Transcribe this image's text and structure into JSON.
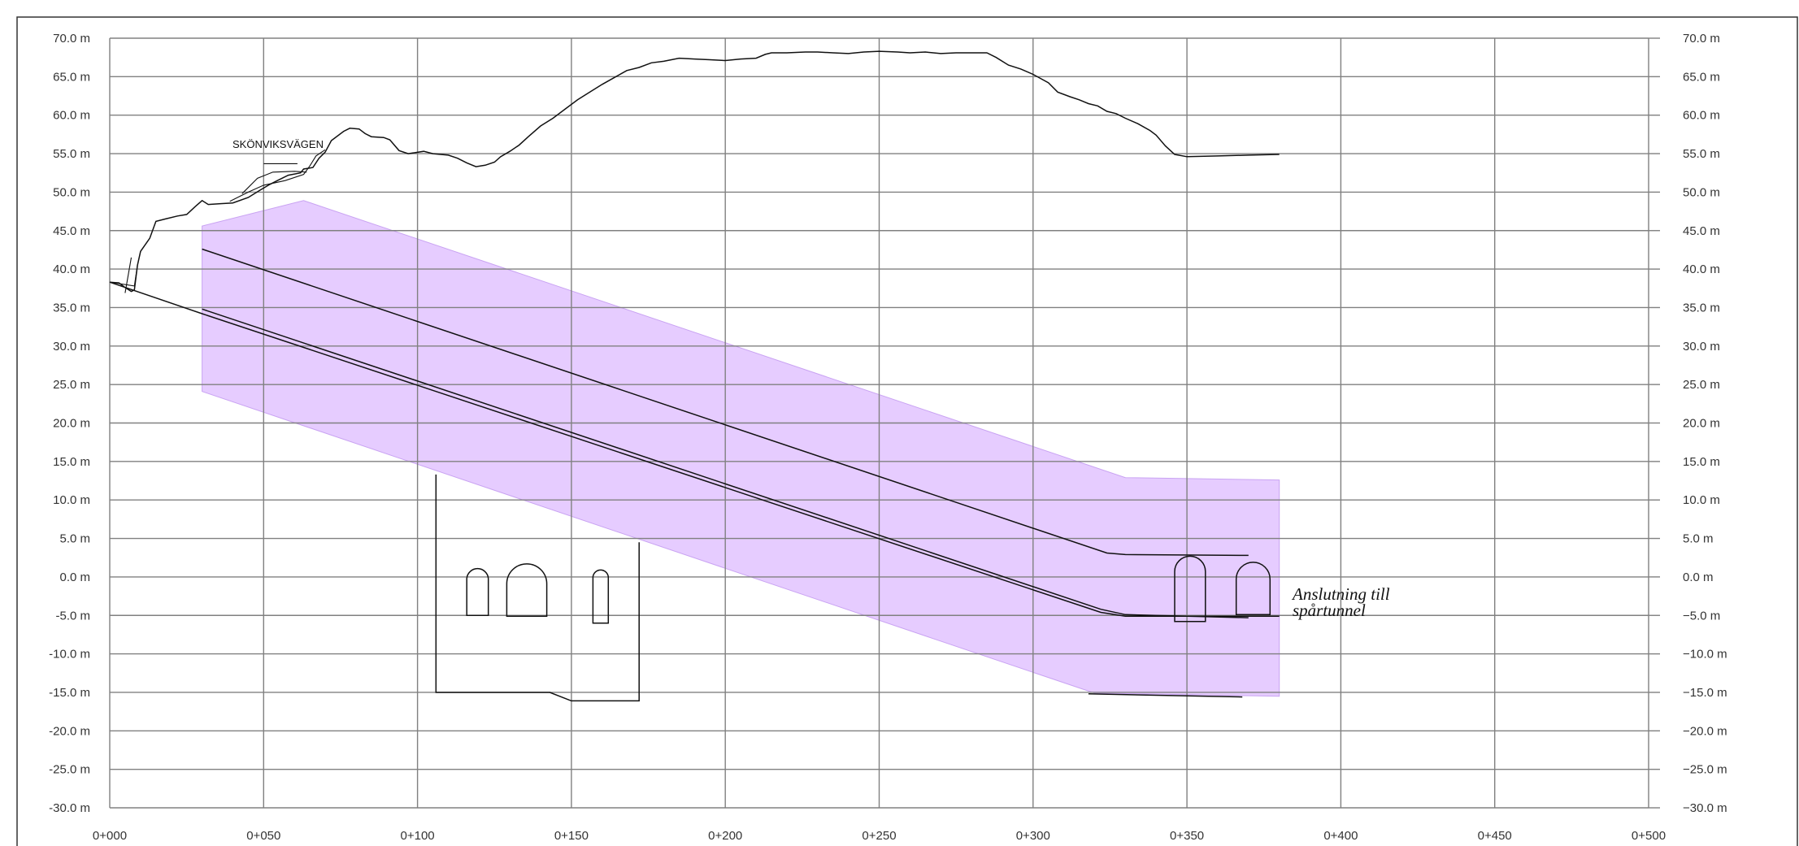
{
  "chart_data": {
    "type": "diagram",
    "x_ticks": [
      "0+000",
      "0+050",
      "0+100",
      "0+150",
      "0+200",
      "0+250",
      "0+300",
      "0+350",
      "0+400",
      "0+450",
      "0+500"
    ],
    "y_ticks_left": [
      "70.0 m",
      "65.0 m",
      "60.0 m",
      "55.0 m",
      "50.0 m",
      "45.0 m",
      "40.0 m",
      "35.0 m",
      "30.0 m",
      "25.0 m",
      "20.0 m",
      "15.0 m",
      "10.0 m",
      "5.0 m",
      "0.0 m",
      "-5.0 m",
      "-10.0 m",
      "-15.0 m",
      "-20.0 m",
      "-25.0 m",
      "-30.0 m"
    ],
    "y_ticks_right": [
      "70.0 m",
      "65.0 m",
      "60.0 m",
      "55.0 m",
      "50.0 m",
      "45.0 m",
      "40.0 m",
      "35.0 m",
      "30.0 m",
      "25.0 m",
      "20.0 m",
      "15.0 m",
      "10.0 m",
      "5.0 m",
      "0.0 m",
      "−5.0 m",
      "−10.0 m",
      "−15.0 m",
      "−20.0 m",
      "−25.0 m",
      "−30.0 m"
    ],
    "x_range": [
      0,
      500
    ],
    "y_range": [
      -30,
      70
    ],
    "grid": true,
    "annotations": {
      "road_label": "SKÖNVIKSVÄGEN",
      "connection_line1": "Anslutning till",
      "connection_line2": "spårtunnel"
    },
    "terrain_profile": [
      [
        0,
        38.3
      ],
      [
        3,
        38.2
      ],
      [
        5,
        37.6
      ],
      [
        7,
        37.1
      ],
      [
        8,
        37.3
      ],
      [
        9,
        40.5
      ],
      [
        10,
        42.3
      ],
      [
        13,
        44
      ],
      [
        15,
        46.2
      ],
      [
        18,
        46.5
      ],
      [
        22,
        46.9
      ],
      [
        25,
        47.1
      ],
      [
        28,
        48.2
      ],
      [
        30,
        48.9
      ],
      [
        32,
        48.4
      ],
      [
        36,
        48.5
      ],
      [
        40,
        48.6
      ],
      [
        45,
        49.3
      ],
      [
        49,
        50.3
      ],
      [
        52,
        51
      ],
      [
        55,
        51.6
      ],
      [
        58,
        52.2
      ],
      [
        62,
        52.5
      ],
      [
        63,
        53
      ],
      [
        66,
        53.2
      ],
      [
        68,
        54.4
      ],
      [
        70,
        55.2
      ],
      [
        72,
        56.7
      ],
      [
        76,
        57.9
      ],
      [
        78,
        58.3
      ],
      [
        81,
        58.2
      ],
      [
        83,
        57.6
      ],
      [
        85,
        57.2
      ],
      [
        89,
        57.1
      ],
      [
        91,
        56.8
      ],
      [
        94,
        55.4
      ],
      [
        97,
        55
      ],
      [
        102,
        55.3
      ],
      [
        105,
        55
      ],
      [
        110,
        54.8
      ],
      [
        113,
        54.4
      ],
      [
        116,
        53.8
      ],
      [
        119,
        53.3
      ],
      [
        122,
        53.5
      ],
      [
        125,
        53.9
      ],
      [
        127,
        54.6
      ],
      [
        130,
        55.3
      ],
      [
        133,
        56.1
      ],
      [
        136,
        57.2
      ],
      [
        140,
        58.6
      ],
      [
        144,
        59.6
      ],
      [
        148,
        60.8
      ],
      [
        152,
        62
      ],
      [
        156,
        63
      ],
      [
        160,
        64
      ],
      [
        164,
        64.9
      ],
      [
        168,
        65.8
      ],
      [
        172,
        66.2
      ],
      [
        176,
        66.8
      ],
      [
        180,
        67
      ],
      [
        185,
        67.4
      ],
      [
        190,
        67.3
      ],
      [
        195,
        67.2
      ],
      [
        200,
        67.1
      ],
      [
        205,
        67.3
      ],
      [
        210,
        67.4
      ],
      [
        213,
        67.9
      ],
      [
        215,
        68.1
      ],
      [
        220,
        68.1
      ],
      [
        226,
        68.2
      ],
      [
        230,
        68.2
      ],
      [
        235,
        68.1
      ],
      [
        240,
        68
      ],
      [
        245,
        68.2
      ],
      [
        250,
        68.3
      ],
      [
        256,
        68.2
      ],
      [
        260,
        68.1
      ],
      [
        265,
        68.2
      ],
      [
        270,
        68
      ],
      [
        275,
        68.1
      ],
      [
        281,
        68.1
      ],
      [
        285,
        68.1
      ],
      [
        288,
        67.5
      ],
      [
        292,
        66.5
      ],
      [
        296,
        66
      ],
      [
        300,
        65.3
      ],
      [
        305,
        64.2
      ],
      [
        308,
        63
      ],
      [
        312,
        62.4
      ],
      [
        315,
        62
      ],
      [
        318,
        61.5
      ],
      [
        321,
        61.2
      ],
      [
        324,
        60.5
      ],
      [
        327,
        60.2
      ],
      [
        330,
        59.6
      ],
      [
        334,
        58.9
      ],
      [
        338,
        58
      ],
      [
        340,
        57.4
      ],
      [
        343,
        56
      ],
      [
        346,
        54.9
      ],
      [
        350,
        54.6
      ],
      [
        360,
        54.7
      ],
      [
        370,
        54.8
      ],
      [
        380,
        54.9
      ]
    ],
    "road_curve": [
      [
        39,
        48.8
      ],
      [
        45,
        50
      ],
      [
        50,
        50.9
      ],
      [
        57,
        51.5
      ],
      [
        63,
        52.3
      ],
      [
        65,
        53.4
      ],
      [
        67,
        54.7
      ],
      [
        70,
        55.5
      ]
    ],
    "road_upper_edge": [
      [
        43,
        49.8
      ],
      [
        48,
        51.8
      ],
      [
        53,
        52.6
      ],
      [
        60,
        52.7
      ],
      [
        64,
        52.6
      ]
    ],
    "road_tick": [
      [
        50,
        53.7
      ],
      [
        61,
        53.7
      ]
    ],
    "left_descent_lines": [
      [
        [
          0,
          38.3
        ],
        [
          8,
          37.8
        ],
        [
          9,
          40.5
        ]
      ],
      [
        [
          5,
          36.9
        ],
        [
          7,
          41.5
        ]
      ]
    ],
    "upper_tunnel_line": [
      [
        30,
        42.6
      ],
      [
        324,
        3.1
      ],
      [
        330,
        2.9
      ],
      [
        370,
        2.8
      ]
    ],
    "main_tunnel_lines": [
      [
        [
          0,
          38.3
        ],
        [
          30,
          34.2
        ],
        [
          322,
          -4.6
        ],
        [
          330,
          -5.1
        ],
        [
          380,
          -5.1
        ]
      ],
      [
        [
          30,
          34.8
        ],
        [
          322,
          -4.2
        ],
        [
          330,
          -4.9
        ],
        [
          370,
          -5.3
        ]
      ]
    ],
    "purple_zone": [
      [
        30,
        45.6
      ],
      [
        63,
        48.9
      ],
      [
        330,
        12.9
      ],
      [
        380,
        12.6
      ],
      [
        380,
        -15.5
      ],
      [
        320,
        -15.1
      ],
      [
        30,
        24.1
      ]
    ],
    "purple_color": "#e6ccff",
    "bottom_line": [
      [
        318,
        -15.2
      ],
      [
        368,
        -15.6
      ]
    ],
    "section_box": [
      [
        106,
        13.3
      ],
      [
        106,
        -15
      ],
      [
        143,
        -15
      ],
      [
        150,
        -16.1
      ],
      [
        172,
        -16.1
      ],
      [
        172,
        4.5
      ]
    ],
    "tunnel_profiles": [
      {
        "x0": 116,
        "x1": 123,
        "yTop": 1.2,
        "yBot": -5.0
      },
      {
        "x0": 129,
        "x1": 142,
        "yTop": 1.7,
        "yBot": -5.1
      },
      {
        "x0": 157,
        "x1": 162,
        "yTop": 1.0,
        "yBot": -6.0
      },
      {
        "x0": 346,
        "x1": 356,
        "yTop": 2.7,
        "yBot": -5.8
      },
      {
        "x0": 366,
        "x1": 377,
        "yTop": 1.9,
        "yBot": -4.9
      }
    ]
  }
}
